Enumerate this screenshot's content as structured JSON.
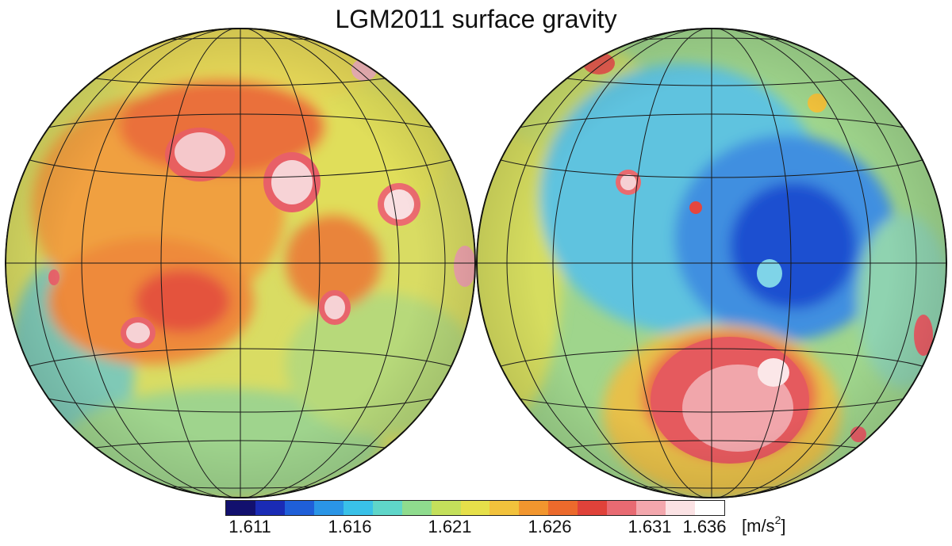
{
  "title": "LGM2011 surface gravity",
  "map": {
    "hemispheres": [
      "nearside",
      "farside"
    ],
    "projection": "orthographic hemispheres with graticule"
  },
  "colorbar": {
    "ticks": [
      "1.611",
      "1.616",
      "1.621",
      "1.626",
      "1.631",
      "1.636"
    ],
    "unit_text": "[m/s",
    "unit_exp": "2",
    "unit_close": "]",
    "colors": [
      "#12106e",
      "#1a2bb5",
      "#1f5fd8",
      "#2a95e6",
      "#39c1e8",
      "#5fd6c9",
      "#8fdc8e",
      "#c4e05b",
      "#e6e04a",
      "#f2c23c",
      "#f2962e",
      "#ec6a2c",
      "#e0423a",
      "#e86a72",
      "#f3a7ad",
      "#fbe2e4",
      "#ffffff"
    ]
  }
}
